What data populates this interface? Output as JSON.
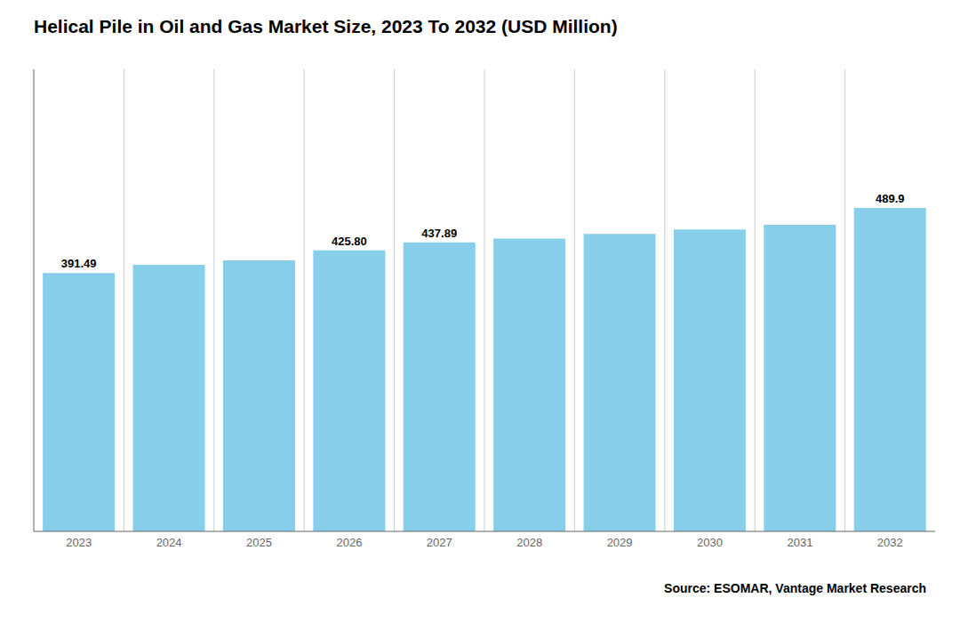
{
  "chart_data": {
    "type": "bar",
    "title": "Helical Pile in Oil and Gas Market Size, 2023 To 2032 (USD Million)",
    "categories": [
      "2023",
      "2024",
      "2025",
      "2026",
      "2027",
      "2028",
      "2029",
      "2030",
      "2031",
      "2032"
    ],
    "values": [
      391.49,
      404.0,
      410.5,
      425.8,
      437.89,
      443.5,
      450.5,
      457.5,
      464.5,
      489.9
    ],
    "value_labels": [
      "391.49",
      null,
      null,
      "425.80",
      "437.89",
      null,
      null,
      null,
      null,
      "489.9"
    ],
    "data_labels": true,
    "color": "#87CEEB",
    "ylim": [
      0,
      700
    ],
    "grid": true,
    "tick_labels": "x",
    "annotations": [
      "Source: ESOMAR, Vantage Market Research"
    ]
  }
}
